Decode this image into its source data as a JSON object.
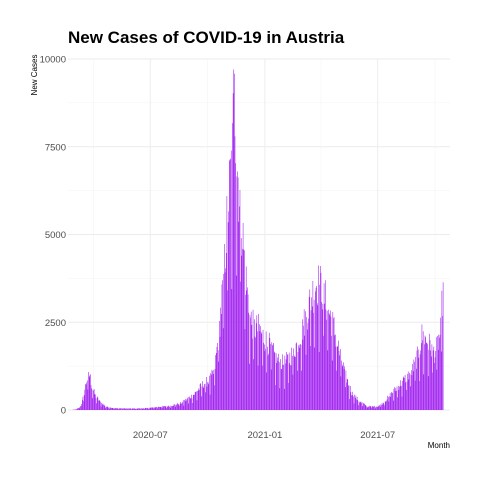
{
  "chart_data": {
    "type": "bar",
    "title": "New Cases of COVID-19 in Austria",
    "xlabel": "Month",
    "ylabel": "New Cases",
    "x_range": [
      "2020-02-20",
      "2021-10-25"
    ],
    "ylim": [
      0,
      10000
    ],
    "y_ticks": [
      0,
      2500,
      5000,
      7500,
      10000
    ],
    "y_tick_labels": [
      "0",
      "2500",
      "5000",
      "7500",
      "10000"
    ],
    "x_ticks": [
      "2020-07-01",
      "2021-01-01",
      "2021-07-01"
    ],
    "x_tick_labels": [
      "2020-07",
      "2021-01",
      "2021-07"
    ],
    "grid": true,
    "bar_color": "#a020f0",
    "dates": [
      "2020-03-01",
      "2020-11-13",
      "2021-10-14"
    ],
    "anchors": [
      [
        "2020-02-26",
        0
      ],
      [
        "2020-03-05",
        20
      ],
      [
        "2020-03-12",
        120
      ],
      [
        "2020-03-16",
        400
      ],
      [
        "2020-03-21",
        850
      ],
      [
        "2020-03-26",
        1000
      ],
      [
        "2020-03-29",
        700
      ],
      [
        "2020-04-04",
        400
      ],
      [
        "2020-04-12",
        220
      ],
      [
        "2020-04-22",
        90
      ],
      [
        "2020-05-05",
        50
      ],
      [
        "2020-06-01",
        40
      ],
      [
        "2020-06-25",
        50
      ],
      [
        "2020-07-15",
        90
      ],
      [
        "2020-08-01",
        110
      ],
      [
        "2020-08-20",
        200
      ],
      [
        "2020-09-10",
        450
      ],
      [
        "2020-09-25",
        750
      ],
      [
        "2020-10-05",
        850
      ],
      [
        "2020-10-12",
        1100
      ],
      [
        "2020-10-20",
        2300
      ],
      [
        "2020-10-27",
        3800
      ],
      [
        "2020-11-03",
        5800
      ],
      [
        "2020-11-10",
        7200
      ],
      [
        "2020-11-13",
        9500
      ],
      [
        "2020-11-17",
        7000
      ],
      [
        "2020-11-24",
        5500
      ],
      [
        "2020-12-01",
        3800
      ],
      [
        "2020-12-08",
        2600
      ],
      [
        "2020-12-15",
        2300
      ],
      [
        "2020-12-22",
        2300
      ],
      [
        "2021-01-01",
        2000
      ],
      [
        "2021-01-10",
        1800
      ],
      [
        "2021-01-20",
        1400
      ],
      [
        "2021-02-01",
        1300
      ],
      [
        "2021-02-15",
        1600
      ],
      [
        "2021-03-01",
        2200
      ],
      [
        "2021-03-15",
        3100
      ],
      [
        "2021-03-25",
        3600
      ],
      [
        "2021-04-02",
        3450
      ],
      [
        "2021-04-12",
        2900
      ],
      [
        "2021-04-22",
        2300
      ],
      [
        "2021-05-01",
        1600
      ],
      [
        "2021-05-10",
        1000
      ],
      [
        "2021-05-20",
        500
      ],
      [
        "2021-06-01",
        250
      ],
      [
        "2021-06-15",
        100
      ],
      [
        "2021-07-01",
        100
      ],
      [
        "2021-07-10",
        200
      ],
      [
        "2021-07-25",
        500
      ],
      [
        "2021-08-10",
        800
      ],
      [
        "2021-08-25",
        1100
      ],
      [
        "2021-09-05",
        1600
      ],
      [
        "2021-09-10",
        2100
      ],
      [
        "2021-09-20",
        1900
      ],
      [
        "2021-10-01",
        1600
      ],
      [
        "2021-10-10",
        2200
      ],
      [
        "2021-10-14",
        3600
      ]
    ]
  }
}
